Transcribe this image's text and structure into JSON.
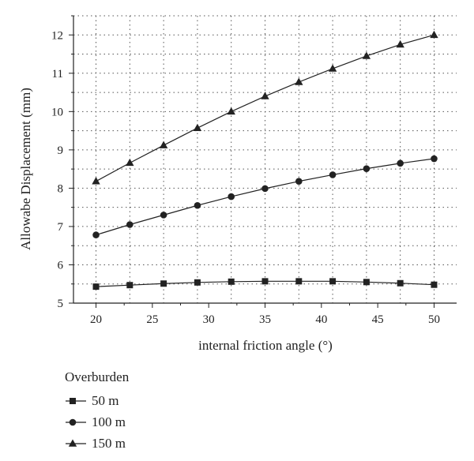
{
  "chart_data": {
    "type": "line",
    "title": "",
    "xlabel": "internal friction angle (°)",
    "ylabel": "Allowabe Displacement (mm)",
    "xlim": [
      18,
      52
    ],
    "ylim": [
      5,
      12.5
    ],
    "xticks": [
      "20",
      "25",
      "30",
      "35",
      "40",
      "45",
      "50"
    ],
    "yticks": [
      "5",
      "6",
      "7",
      "8",
      "9",
      "10",
      "11",
      "12"
    ],
    "grid": true,
    "legend_title": "Overburden",
    "legend_position": "bottom-left",
    "x": [
      20,
      23,
      26,
      29,
      32,
      35,
      38,
      41,
      44,
      47,
      50
    ],
    "series": [
      {
        "name": "50 m",
        "marker": "square",
        "values": [
          5.43,
          5.47,
          5.51,
          5.54,
          5.56,
          5.57,
          5.57,
          5.57,
          5.55,
          5.52,
          5.48
        ]
      },
      {
        "name": "100 m",
        "marker": "circle",
        "values": [
          6.78,
          7.05,
          7.3,
          7.55,
          7.78,
          7.99,
          8.18,
          8.35,
          8.51,
          8.65,
          8.77
        ]
      },
      {
        "name": "150 m",
        "marker": "triangle",
        "values": [
          8.18,
          8.66,
          9.12,
          9.57,
          10.0,
          10.4,
          10.77,
          11.12,
          11.45,
          11.75,
          12.0
        ]
      }
    ]
  }
}
